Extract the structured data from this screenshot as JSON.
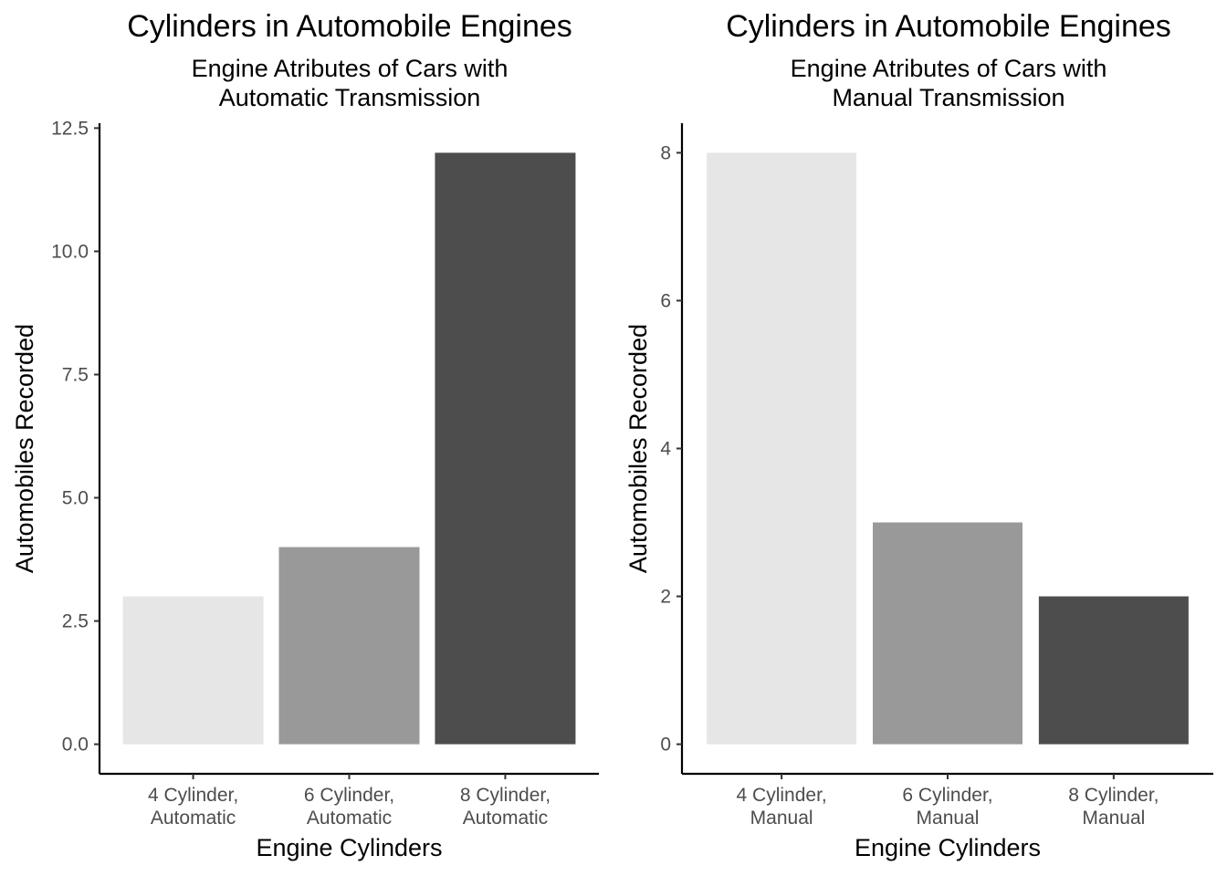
{
  "chart_data": [
    {
      "type": "bar",
      "title": "Cylinders in Automobile Engines",
      "subtitle_lines": [
        "Engine Atributes of Cars with",
        "Automatic Transmission"
      ],
      "xlabel": "Engine Cylinders",
      "ylabel": "Automobiles Recorded",
      "categories": [
        [
          "4 Cylinder,",
          "Automatic"
        ],
        [
          "6 Cylinder,",
          "Automatic"
        ],
        [
          "8 Cylinder,",
          "Automatic"
        ]
      ],
      "values": [
        3,
        4,
        12
      ],
      "colors": [
        "#e6e6e6",
        "#999999",
        "#4d4d4d"
      ],
      "ylim": [
        -0.6,
        12.6
      ],
      "yticks": [
        0,
        2.5,
        5,
        7.5,
        10,
        12.5
      ],
      "ytick_labels": [
        "0.0",
        "2.5",
        "5.0",
        "7.5",
        "10.0",
        "12.5"
      ],
      "grid": false,
      "legend": "none"
    },
    {
      "type": "bar",
      "title": "Cylinders in Automobile Engines",
      "subtitle_lines": [
        "Engine Atributes of Cars with",
        "Manual Transmission"
      ],
      "xlabel": "Engine Cylinders",
      "ylabel": "Automobiles Recorded",
      "categories": [
        [
          "4 Cylinder,",
          "Manual"
        ],
        [
          "6 Cylinder,",
          "Manual"
        ],
        [
          "8 Cylinder,",
          "Manual"
        ]
      ],
      "values": [
        8,
        3,
        2
      ],
      "colors": [
        "#e6e6e6",
        "#999999",
        "#4d4d4d"
      ],
      "ylim": [
        -0.4,
        8.4
      ],
      "yticks": [
        0,
        2,
        4,
        6,
        8
      ],
      "ytick_labels": [
        "0",
        "2",
        "4",
        "6",
        "8"
      ],
      "grid": false,
      "legend": "none"
    }
  ]
}
